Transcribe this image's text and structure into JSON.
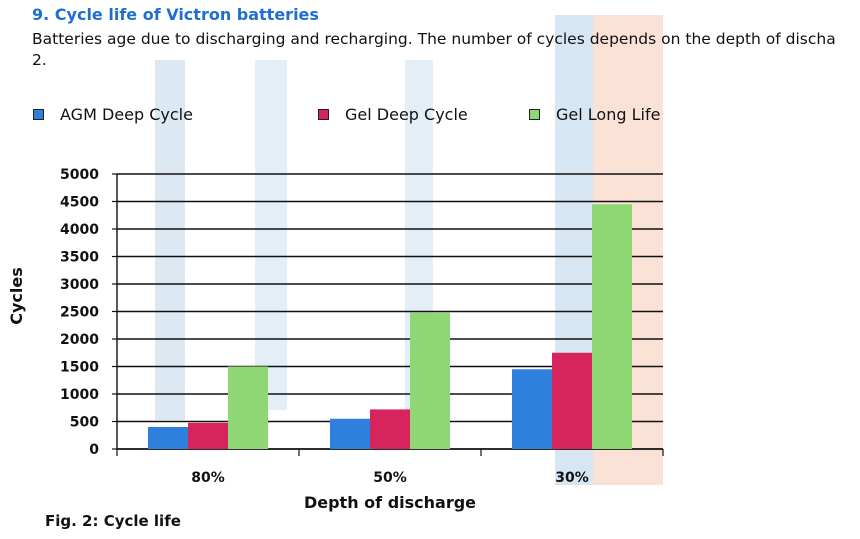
{
  "section": {
    "heading": "9. Cycle life of Victron batteries",
    "intro_line1": "Batteries age due to discharging and recharging. The number of cycles depends on the depth of discha",
    "intro_line2": "2."
  },
  "figure_caption": "Fig. 2: Cycle life",
  "colors": {
    "heading": "#1f6fd0",
    "agm": "#2f7fdc",
    "gel_deep": "#d8245c",
    "gel_long": "#8fd774"
  },
  "chart_data": {
    "type": "bar",
    "categories": [
      "80%",
      "50%",
      "30%"
    ],
    "series": [
      {
        "name": "AGM Deep Cycle",
        "values": [
          400,
          550,
          1450
        ],
        "color": "#2f7fdc"
      },
      {
        "name": "Gel Deep Cycle",
        "values": [
          475,
          720,
          1750
        ],
        "color": "#d8245c"
      },
      {
        "name": "Gel Long Life",
        "values": [
          1500,
          2480,
          4450
        ],
        "color": "#8fd774"
      }
    ],
    "xlabel": "Depth of discharge",
    "ylabel": "Cycles",
    "ylim": [
      0,
      5000
    ],
    "yticks": [
      "5000",
      "4500",
      "4000",
      "3500",
      "3000",
      "2500",
      "2000",
      "1500",
      "1000",
      "500",
      "0"
    ],
    "grid": true,
    "legend_position": "top"
  }
}
